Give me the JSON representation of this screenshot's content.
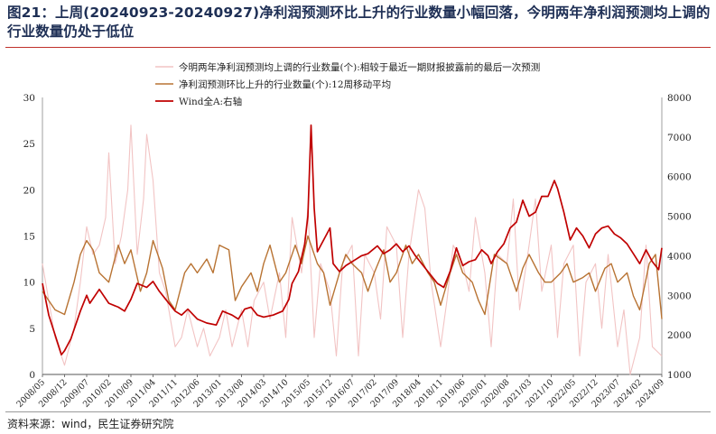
{
  "header": {
    "title": "图21：上周(20240923-20240927)净利润预测环比上升的行业数量小幅回落，今明两年净利润预测均上调的行业数量仍处于低位"
  },
  "footer": {
    "source": "资料来源：wind，民生证券研究院"
  },
  "chart_data": {
    "type": "line",
    "title": "",
    "xlabel": "",
    "ylabel": "",
    "x_tick_labels": [
      "2008/05",
      "2008/12",
      "2009/07",
      "2010/02",
      "2010/09",
      "2011/04",
      "2011/11",
      "2012/06",
      "2013/01",
      "2013/08",
      "2014/03",
      "2014/10",
      "2015/05",
      "2015/12",
      "2016/07",
      "2017/02",
      "2017/09",
      "2018/04",
      "2018/11",
      "2019/06",
      "2020/01",
      "2020/08",
      "2021/03",
      "2021/10",
      "2022/05",
      "2022/12",
      "2023/07",
      "2024/02",
      "2024/09"
    ],
    "y_left": {
      "min": 0,
      "max": 30,
      "ticks": [
        0,
        5,
        10,
        15,
        20,
        25,
        30
      ]
    },
    "y_right": {
      "min": 1000,
      "max": 8000,
      "ticks": [
        1000,
        2000,
        3000,
        4000,
        5000,
        6000,
        7000,
        8000
      ]
    },
    "legend_position": "top-center",
    "grid": false,
    "series": [
      {
        "name": "今明两年净利润预测均上调的行业数量(个):相较于最近一期财报披露前的最后一次预测",
        "axis": "left",
        "color": "#f2c4c4",
        "x": [
          "2008/05",
          "2008/07",
          "2008/09",
          "2008/12",
          "2009/03",
          "2009/05",
          "2009/07",
          "2009/09",
          "2009/11",
          "2010/01",
          "2010/02",
          "2010/04",
          "2010/06",
          "2010/08",
          "2010/09",
          "2010/11",
          "2011/01",
          "2011/02",
          "2011/04",
          "2011/06",
          "2011/08",
          "2011/11",
          "2012/01",
          "2012/03",
          "2012/06",
          "2012/08",
          "2012/10",
          "2013/01",
          "2013/03",
          "2013/05",
          "2013/08",
          "2013/10",
          "2013/12",
          "2014/03",
          "2014/05",
          "2014/08",
          "2014/10",
          "2014/12",
          "2015/03",
          "2015/05",
          "2015/07",
          "2015/09",
          "2015/12",
          "2016/02",
          "2016/04",
          "2016/07",
          "2016/09",
          "2016/11",
          "2017/02",
          "2017/04",
          "2017/06",
          "2017/09",
          "2017/11",
          "2018/01",
          "2018/04",
          "2018/06",
          "2018/08",
          "2018/11",
          "2019/01",
          "2019/03",
          "2019/06",
          "2019/08",
          "2019/10",
          "2020/01",
          "2020/03",
          "2020/05",
          "2020/08",
          "2020/10",
          "2020/12",
          "2021/03",
          "2021/05",
          "2021/07",
          "2021/10",
          "2021/12",
          "2022/02",
          "2022/05",
          "2022/07",
          "2022/09",
          "2022/12",
          "2023/02",
          "2023/04",
          "2023/07",
          "2023/09",
          "2023/11",
          "2024/02",
          "2024/04",
          "2024/06",
          "2024/09"
        ],
        "values": [
          12,
          8,
          4,
          1,
          5,
          10,
          16,
          13,
          14,
          17,
          24,
          12,
          15,
          20,
          27,
          13,
          19,
          26,
          21,
          11,
          9,
          3,
          4,
          7,
          3,
          5,
          2,
          4,
          7,
          3,
          7,
          3,
          8,
          10,
          6,
          11,
          4,
          17,
          11,
          18,
          4,
          12,
          9,
          2,
          12,
          14,
          2,
          13,
          11,
          6,
          16,
          14,
          4,
          13,
          20,
          18,
          10,
          3,
          8,
          14,
          12,
          9,
          17,
          11,
          3,
          13,
          12,
          19,
          7,
          14,
          19,
          9,
          14,
          4,
          12,
          14,
          2,
          10,
          12,
          5,
          13,
          3,
          7,
          0,
          4,
          14,
          3,
          2
        ]
      },
      {
        "name": "净利润预测环比上升的行业数量(个):12周移动平均",
        "axis": "left",
        "color": "#b87333",
        "x": [
          "2008/05",
          "2008/09",
          "2008/12",
          "2009/03",
          "2009/05",
          "2009/07",
          "2009/09",
          "2009/11",
          "2010/02",
          "2010/05",
          "2010/07",
          "2010/09",
          "2010/12",
          "2011/02",
          "2011/04",
          "2011/07",
          "2011/09",
          "2011/11",
          "2012/02",
          "2012/04",
          "2012/06",
          "2012/09",
          "2012/11",
          "2013/01",
          "2013/04",
          "2013/06",
          "2013/08",
          "2013/11",
          "2014/01",
          "2014/03",
          "2014/05",
          "2014/08",
          "2014/10",
          "2015/01",
          "2015/03",
          "2015/05",
          "2015/08",
          "2015/10",
          "2015/12",
          "2016/03",
          "2016/05",
          "2016/07",
          "2016/10",
          "2016/12",
          "2017/02",
          "2017/05",
          "2017/07",
          "2017/09",
          "2017/12",
          "2018/02",
          "2018/04",
          "2018/07",
          "2018/09",
          "2018/11",
          "2019/02",
          "2019/04",
          "2019/06",
          "2019/09",
          "2019/11",
          "2020/01",
          "2020/04",
          "2020/06",
          "2020/08",
          "2020/11",
          "2021/01",
          "2021/03",
          "2021/06",
          "2021/08",
          "2021/10",
          "2022/01",
          "2022/03",
          "2022/05",
          "2022/08",
          "2022/10",
          "2022/12",
          "2023/03",
          "2023/05",
          "2023/07",
          "2023/10",
          "2023/12",
          "2024/02",
          "2024/05",
          "2024/07",
          "2024/09"
        ],
        "values": [
          9,
          7,
          6.5,
          10,
          13,
          14.5,
          13.5,
          11,
          10,
          14,
          12,
          13.5,
          9,
          11,
          14.5,
          11.5,
          8,
          7,
          11,
          12,
          11,
          12.5,
          11,
          14,
          13.5,
          8,
          9.5,
          11,
          9,
          12,
          14,
          10,
          11,
          14,
          12,
          15,
          12,
          11,
          7.5,
          11,
          13,
          12,
          11,
          9,
          11,
          13.5,
          10,
          11,
          14,
          12,
          13,
          11,
          10,
          7.5,
          11,
          13,
          11,
          10,
          8,
          6.5,
          13,
          12.5,
          12,
          9,
          11.5,
          13,
          11,
          10,
          10,
          11,
          12,
          10,
          10.5,
          11,
          9,
          11.5,
          12,
          10,
          11,
          8.5,
          7,
          12,
          13,
          6
        ]
      },
      {
        "name": "Wind全A:右轴",
        "axis": "right",
        "color": "#c00000",
        "x": [
          "2008/05",
          "2008/07",
          "2008/09",
          "2008/11",
          "2008/12",
          "2009/02",
          "2009/05",
          "2009/07",
          "2009/08",
          "2009/11",
          "2010/02",
          "2010/05",
          "2010/07",
          "2010/09",
          "2010/11",
          "2011/02",
          "2011/04",
          "2011/06",
          "2011/08",
          "2011/11",
          "2012/01",
          "2012/03",
          "2012/06",
          "2012/09",
          "2012/12",
          "2013/02",
          "2013/05",
          "2013/07",
          "2013/09",
          "2013/11",
          "2014/01",
          "2014/03",
          "2014/06",
          "2014/09",
          "2014/11",
          "2014/12",
          "2015/02",
          "2015/04",
          "2015/05",
          "2015/06",
          "2015/07",
          "2015/08",
          "2015/10",
          "2015/12",
          "2016/01",
          "2016/03",
          "2016/05",
          "2016/08",
          "2016/10",
          "2016/12",
          "2017/03",
          "2017/05",
          "2017/07",
          "2017/09",
          "2017/11",
          "2018/01",
          "2018/03",
          "2018/06",
          "2018/08",
          "2018/10",
          "2018/12",
          "2019/02",
          "2019/04",
          "2019/06",
          "2019/08",
          "2019/10",
          "2019/12",
          "2020/02",
          "2020/03",
          "2020/05",
          "2020/07",
          "2020/09",
          "2020/11",
          "2021/01",
          "2021/03",
          "2021/05",
          "2021/07",
          "2021/09",
          "2021/11",
          "2021/12",
          "2022/02",
          "2022/04",
          "2022/06",
          "2022/08",
          "2022/10",
          "2022/12",
          "2023/02",
          "2023/04",
          "2023/06",
          "2023/08",
          "2023/10",
          "2023/12",
          "2024/02",
          "2024/04",
          "2024/06",
          "2024/08",
          "2024/09"
        ],
        "values": [
          3300,
          2500,
          2000,
          1500,
          1600,
          1900,
          2600,
          3000,
          2800,
          3150,
          2800,
          2700,
          2600,
          2900,
          3300,
          3200,
          3350,
          3100,
          2900,
          2600,
          2500,
          2650,
          2400,
          2300,
          2250,
          2600,
          2500,
          2400,
          2650,
          2700,
          2500,
          2450,
          2500,
          2600,
          2900,
          3300,
          3600,
          4300,
          5000,
          7300,
          5200,
          4100,
          4400,
          4700,
          3800,
          3600,
          3750,
          3900,
          4000,
          4050,
          4250,
          4050,
          4150,
          4300,
          4100,
          4250,
          4000,
          3700,
          3500,
          3300,
          3200,
          3600,
          4200,
          3750,
          3850,
          3900,
          4150,
          4000,
          3800,
          4100,
          4300,
          4700,
          4850,
          5400,
          5000,
          5100,
          5500,
          5500,
          5900,
          5700,
          5100,
          4400,
          4700,
          4500,
          4200,
          4550,
          4700,
          4750,
          4550,
          4450,
          4300,
          4050,
          3800,
          4150,
          3850,
          3650,
          4200
        ]
      }
    ]
  }
}
